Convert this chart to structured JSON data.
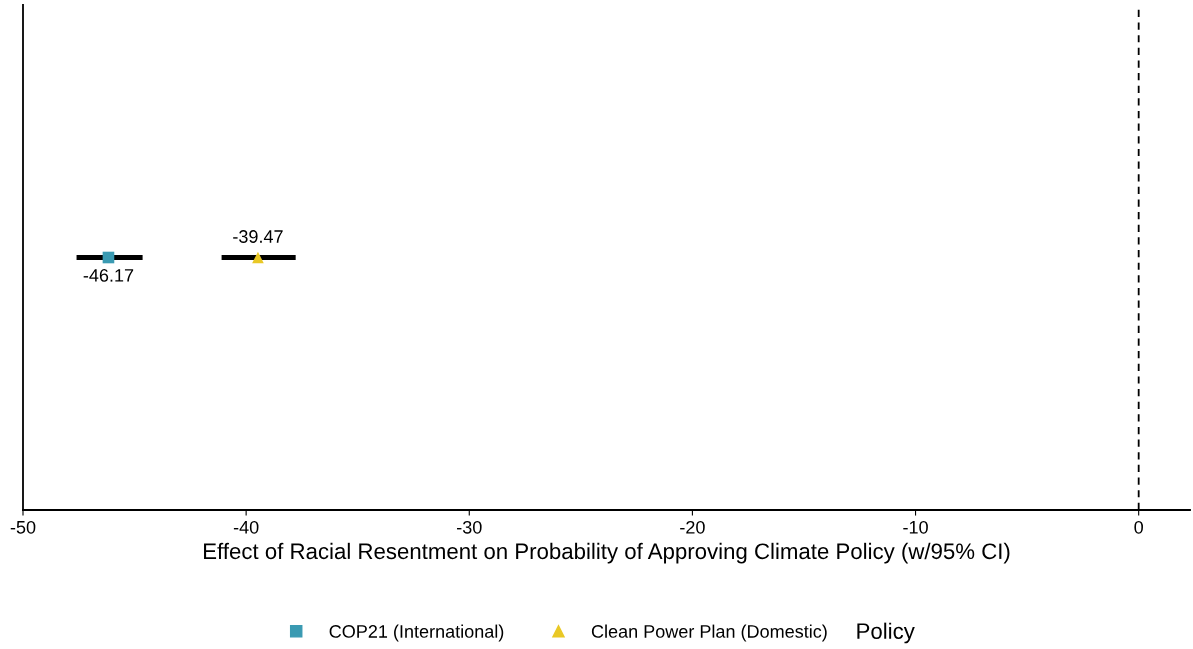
{
  "chart_data": {
    "type": "scatter",
    "orientation": "horizontal",
    "xlabel": "Effect of Racial Resentment on Probability of Approving Climate Policy (w/95% CI)",
    "categories": [
      null
    ],
    "xlim": [
      -50,
      2.3
    ],
    "xticks": [
      {
        "value": -50,
        "label": "-50"
      },
      {
        "value": -40,
        "label": "-40"
      },
      {
        "value": -30,
        "label": "-30"
      },
      {
        "value": -20,
        "label": "-20"
      },
      {
        "value": -10,
        "label": "-10"
      },
      {
        "value": 0,
        "label": "0"
      }
    ],
    "series": [
      {
        "name": "COP21 (International)",
        "color": "#3a9ab2",
        "marker": "square",
        "values": [
          -46.17
        ],
        "errors": [
          [
            -47.6,
            -44.64
          ]
        ]
      },
      {
        "name": "Clean Power Plan (Domestic)",
        "color": "#e9c825",
        "marker": "triangle",
        "values": [
          -39.47
        ],
        "errors": [
          [
            -41.1,
            -37.78
          ]
        ]
      }
    ],
    "data_labels": true,
    "legend": "bottom",
    "legend_title": "Policy",
    "grid": false,
    "tick_labels": "x",
    "ref_lines": [
      {
        "axis": "x",
        "value": 0,
        "label": null,
        "line_style": "dashed",
        "color": "#000000"
      }
    ]
  }
}
